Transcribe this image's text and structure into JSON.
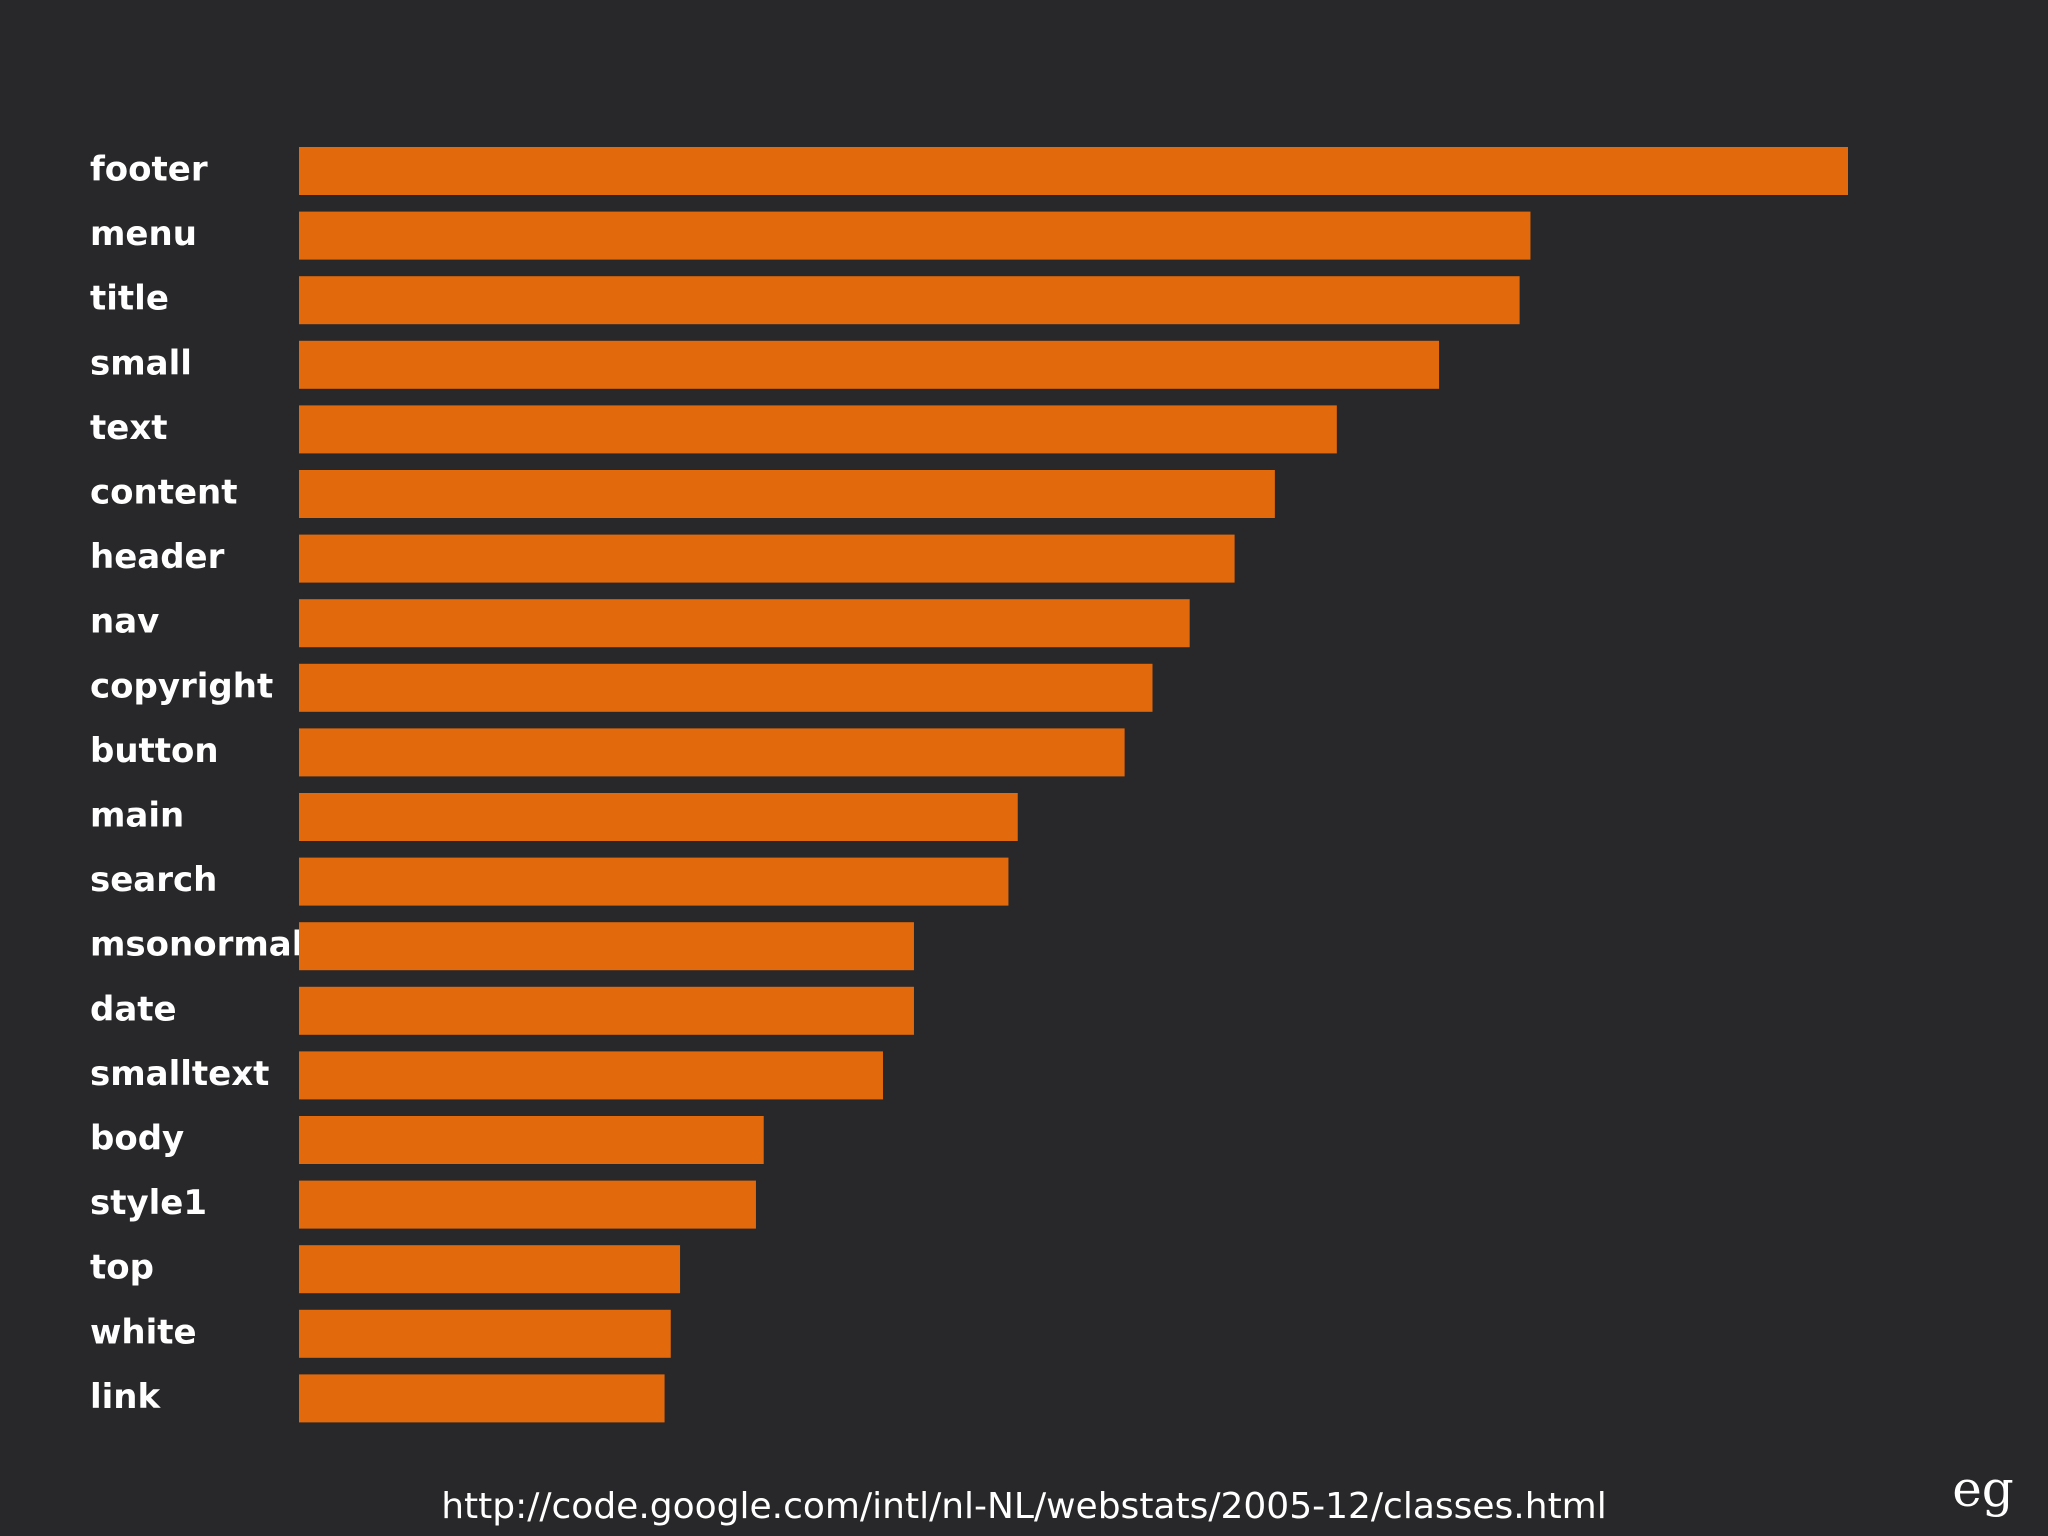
{
  "chart_data": {
    "type": "bar",
    "orientation": "horizontal",
    "title": "",
    "xlabel": "",
    "ylabel": "",
    "categories": [
      "footer",
      "menu",
      "title",
      "small",
      "text",
      "content",
      "header",
      "nav",
      "copyright",
      "button",
      "main",
      "search",
      "msonormal",
      "date",
      "smalltext",
      "body",
      "style1",
      "top",
      "white",
      "link"
    ],
    "values": [
      100,
      79.5,
      78.8,
      73.6,
      67.0,
      63.0,
      60.4,
      57.5,
      55.1,
      53.3,
      46.4,
      45.8,
      39.7,
      39.7,
      37.7,
      30.0,
      29.5,
      24.6,
      24.0,
      23.6
    ],
    "xlim": [
      0,
      100
    ],
    "bar_color": "#e36a0c",
    "grid": false,
    "legend": "none"
  },
  "source": {
    "url": "http://code.google.com/intl/nl-NL/webstats/2005-12/classes.html"
  },
  "logo": {
    "icon": "eg-logo-icon",
    "color": "#ffffff"
  },
  "background_color": "#28282a"
}
